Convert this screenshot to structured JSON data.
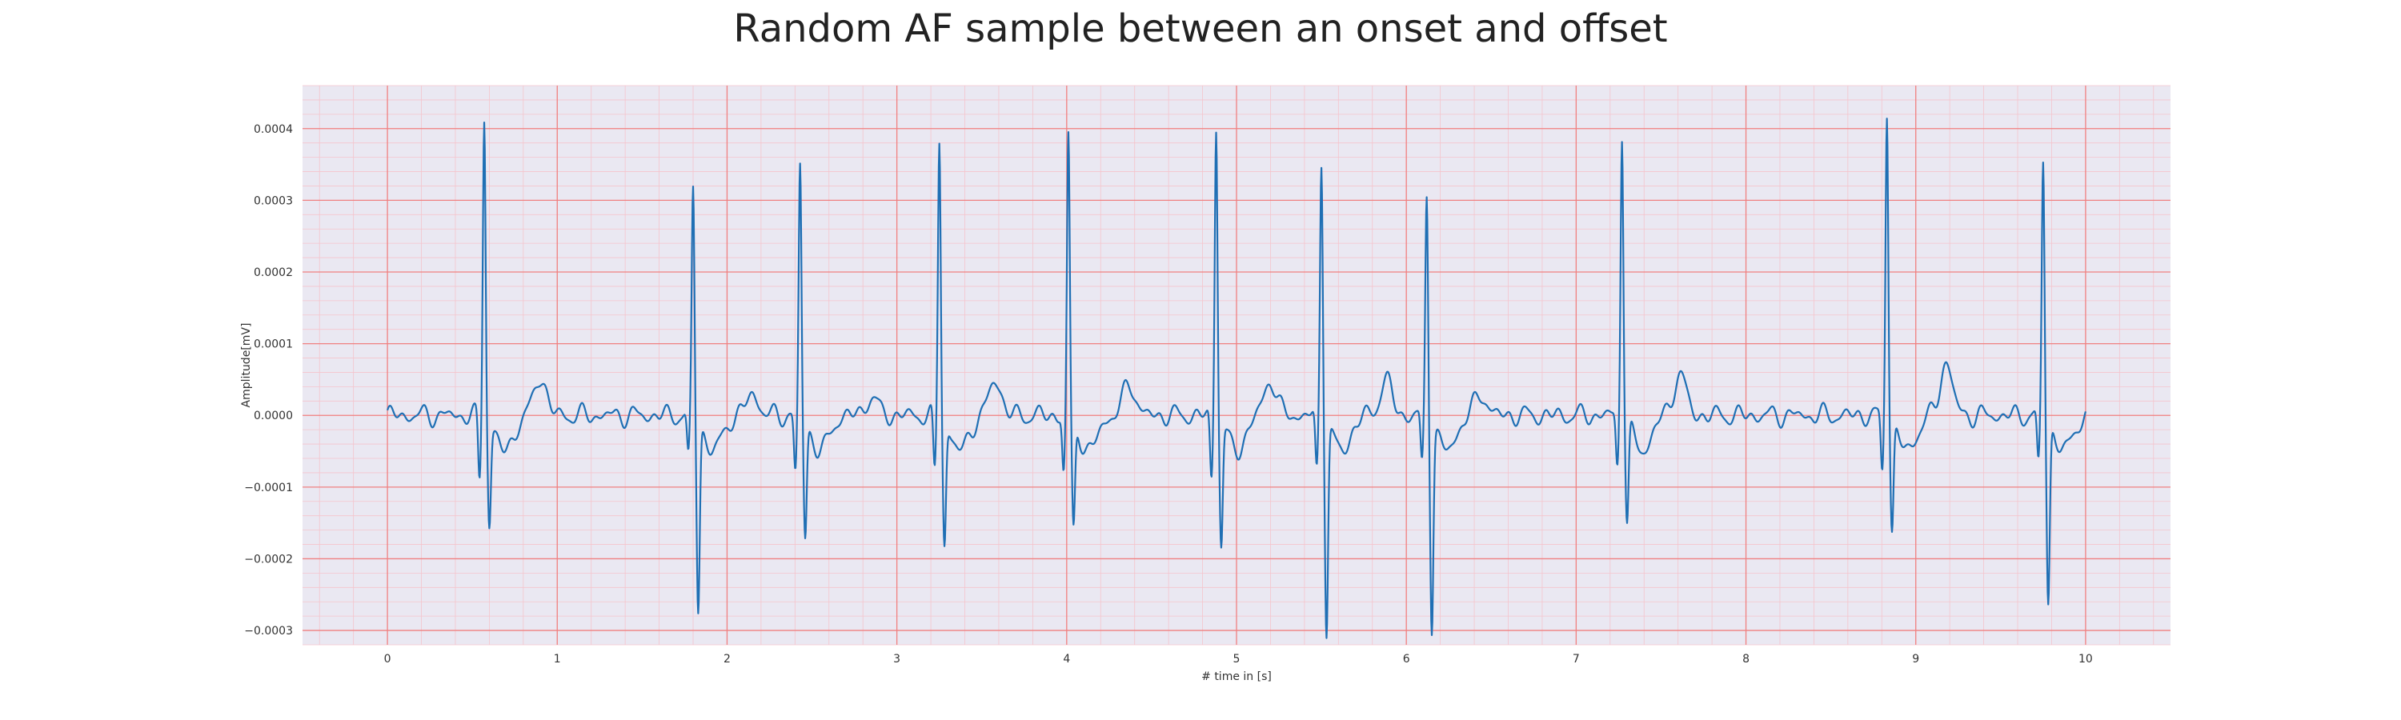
{
  "chart_data": {
    "type": "line",
    "title": "Random AF sample between an onset and offset",
    "xlabel": "# time in [s]",
    "ylabel": "Amplitude[mV]",
    "xlim": [
      -0.5,
      10.5
    ],
    "ylim": [
      -0.00032,
      0.00046
    ],
    "x_ticks": [
      0,
      1,
      2,
      3,
      4,
      5,
      6,
      7,
      8,
      9,
      10
    ],
    "x_tick_labels": [
      "0",
      "1",
      "2",
      "3",
      "4",
      "5",
      "6",
      "7",
      "8",
      "9",
      "10"
    ],
    "y_ticks": [
      -0.0003,
      -0.0002,
      -0.0001,
      0.0,
      0.0001,
      0.0002,
      0.0003,
      0.0004
    ],
    "y_tick_labels": [
      "−0.0003",
      "−0.0002",
      "−0.0001",
      "0.0000",
      "0.0001",
      "0.0002",
      "0.0003",
      "0.0004"
    ],
    "grid": true,
    "minor_grid": true,
    "colors": {
      "line": "#1f6fb4",
      "background": "#eae8f2",
      "major_grid": "#f08080",
      "minor_grid": "#f5c4cc"
    },
    "beats": [
      {
        "t": 0.57,
        "r": 0.00042,
        "q": -9e-05,
        "s": -0.00014
      },
      {
        "t": 1.8,
        "r": 0.00032,
        "q": -6e-05,
        "s": -0.00026
      },
      {
        "t": 2.43,
        "r": 0.00035,
        "q": -8e-05,
        "s": -0.00016
      },
      {
        "t": 3.25,
        "r": 0.00039,
        "q": -8e-05,
        "s": -0.00017
      },
      {
        "t": 4.01,
        "r": 0.00039,
        "q": -8e-05,
        "s": -0.00015
      },
      {
        "t": 4.88,
        "r": 0.00041,
        "q": -9e-05,
        "s": -0.00017
      },
      {
        "t": 5.5,
        "r": 0.00036,
        "q": -8e-05,
        "s": -0.00029
      },
      {
        "t": 6.12,
        "r": 0.00031,
        "q": -7e-05,
        "s": -0.00028
      },
      {
        "t": 7.27,
        "r": 0.0004,
        "q": -7e-05,
        "s": -0.00014
      },
      {
        "t": 8.83,
        "r": 0.00043,
        "q": -8e-05,
        "s": -0.00015
      },
      {
        "t": 9.75,
        "r": 0.00036,
        "q": -7e-05,
        "s": -0.00025
      }
    ],
    "t_waves": [
      {
        "t": 0.9,
        "a": 5.5e-05
      },
      {
        "t": 2.15,
        "a": 3e-05
      },
      {
        "t": 2.85,
        "a": 2.5e-05
      },
      {
        "t": 3.58,
        "a": 5e-05
      },
      {
        "t": 4.37,
        "a": 4.5e-05
      },
      {
        "t": 5.2,
        "a": 5e-05
      },
      {
        "t": 5.88,
        "a": 5e-05
      },
      {
        "t": 6.44,
        "a": 3e-05
      },
      {
        "t": 7.61,
        "a": 6e-05
      },
      {
        "t": 9.18,
        "a": 7.5e-05
      }
    ],
    "series": [
      {
        "x_start": 0.0,
        "x_end": 10.0
      }
    ]
  }
}
